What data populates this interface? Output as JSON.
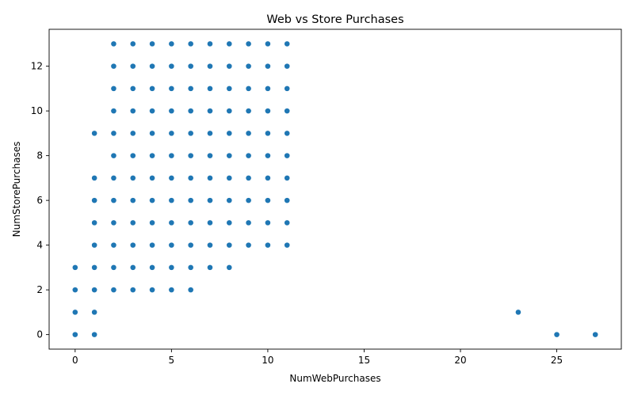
{
  "chart_data": {
    "type": "scatter",
    "title": "Web vs Store Purchases",
    "xlabel": "NumWebPurchases",
    "ylabel": "NumStorePurchases",
    "xlim": [
      -1.35,
      28.35
    ],
    "ylim": [
      -0.65,
      13.65
    ],
    "xticks": [
      0,
      5,
      10,
      15,
      20,
      25
    ],
    "yticks": [
      0,
      2,
      4,
      6,
      8,
      10,
      12
    ],
    "grid": false,
    "color": "#1f77b4",
    "points": [
      [
        0,
        0
      ],
      [
        0,
        1
      ],
      [
        0,
        2
      ],
      [
        0,
        3
      ],
      [
        1,
        0
      ],
      [
        1,
        1
      ],
      [
        1,
        2
      ],
      [
        1,
        3
      ],
      [
        1,
        4
      ],
      [
        1,
        5
      ],
      [
        1,
        6
      ],
      [
        1,
        7
      ],
      [
        1,
        9
      ],
      [
        2,
        2
      ],
      [
        2,
        3
      ],
      [
        2,
        4
      ],
      [
        2,
        5
      ],
      [
        2,
        6
      ],
      [
        2,
        7
      ],
      [
        2,
        8
      ],
      [
        2,
        9
      ],
      [
        2,
        10
      ],
      [
        2,
        11
      ],
      [
        2,
        12
      ],
      [
        2,
        13
      ],
      [
        3,
        2
      ],
      [
        3,
        3
      ],
      [
        3,
        4
      ],
      [
        3,
        5
      ],
      [
        3,
        6
      ],
      [
        3,
        7
      ],
      [
        3,
        8
      ],
      [
        3,
        9
      ],
      [
        3,
        10
      ],
      [
        3,
        11
      ],
      [
        3,
        12
      ],
      [
        3,
        13
      ],
      [
        4,
        2
      ],
      [
        4,
        3
      ],
      [
        4,
        4
      ],
      [
        4,
        5
      ],
      [
        4,
        6
      ],
      [
        4,
        7
      ],
      [
        4,
        8
      ],
      [
        4,
        9
      ],
      [
        4,
        10
      ],
      [
        4,
        11
      ],
      [
        4,
        12
      ],
      [
        4,
        13
      ],
      [
        5,
        2
      ],
      [
        5,
        3
      ],
      [
        5,
        4
      ],
      [
        5,
        5
      ],
      [
        5,
        6
      ],
      [
        5,
        7
      ],
      [
        5,
        8
      ],
      [
        5,
        9
      ],
      [
        5,
        10
      ],
      [
        5,
        11
      ],
      [
        5,
        12
      ],
      [
        5,
        13
      ],
      [
        6,
        2
      ],
      [
        6,
        3
      ],
      [
        6,
        4
      ],
      [
        6,
        5
      ],
      [
        6,
        6
      ],
      [
        6,
        7
      ],
      [
        6,
        8
      ],
      [
        6,
        9
      ],
      [
        6,
        10
      ],
      [
        6,
        11
      ],
      [
        6,
        12
      ],
      [
        6,
        13
      ],
      [
        7,
        3
      ],
      [
        7,
        4
      ],
      [
        7,
        5
      ],
      [
        7,
        6
      ],
      [
        7,
        7
      ],
      [
        7,
        8
      ],
      [
        7,
        9
      ],
      [
        7,
        10
      ],
      [
        7,
        11
      ],
      [
        7,
        12
      ],
      [
        7,
        13
      ],
      [
        8,
        3
      ],
      [
        8,
        4
      ],
      [
        8,
        5
      ],
      [
        8,
        6
      ],
      [
        8,
        7
      ],
      [
        8,
        8
      ],
      [
        8,
        9
      ],
      [
        8,
        10
      ],
      [
        8,
        11
      ],
      [
        8,
        12
      ],
      [
        8,
        13
      ],
      [
        9,
        4
      ],
      [
        9,
        5
      ],
      [
        9,
        6
      ],
      [
        9,
        7
      ],
      [
        9,
        8
      ],
      [
        9,
        9
      ],
      [
        9,
        10
      ],
      [
        9,
        11
      ],
      [
        9,
        12
      ],
      [
        9,
        13
      ],
      [
        10,
        4
      ],
      [
        10,
        5
      ],
      [
        10,
        6
      ],
      [
        10,
        7
      ],
      [
        10,
        8
      ],
      [
        10,
        9
      ],
      [
        10,
        10
      ],
      [
        10,
        11
      ],
      [
        10,
        12
      ],
      [
        10,
        13
      ],
      [
        11,
        4
      ],
      [
        11,
        5
      ],
      [
        11,
        6
      ],
      [
        11,
        7
      ],
      [
        11,
        8
      ],
      [
        11,
        9
      ],
      [
        11,
        10
      ],
      [
        11,
        11
      ],
      [
        11,
        12
      ],
      [
        11,
        13
      ],
      [
        23,
        1
      ],
      [
        25,
        0
      ],
      [
        27,
        0
      ]
    ]
  }
}
